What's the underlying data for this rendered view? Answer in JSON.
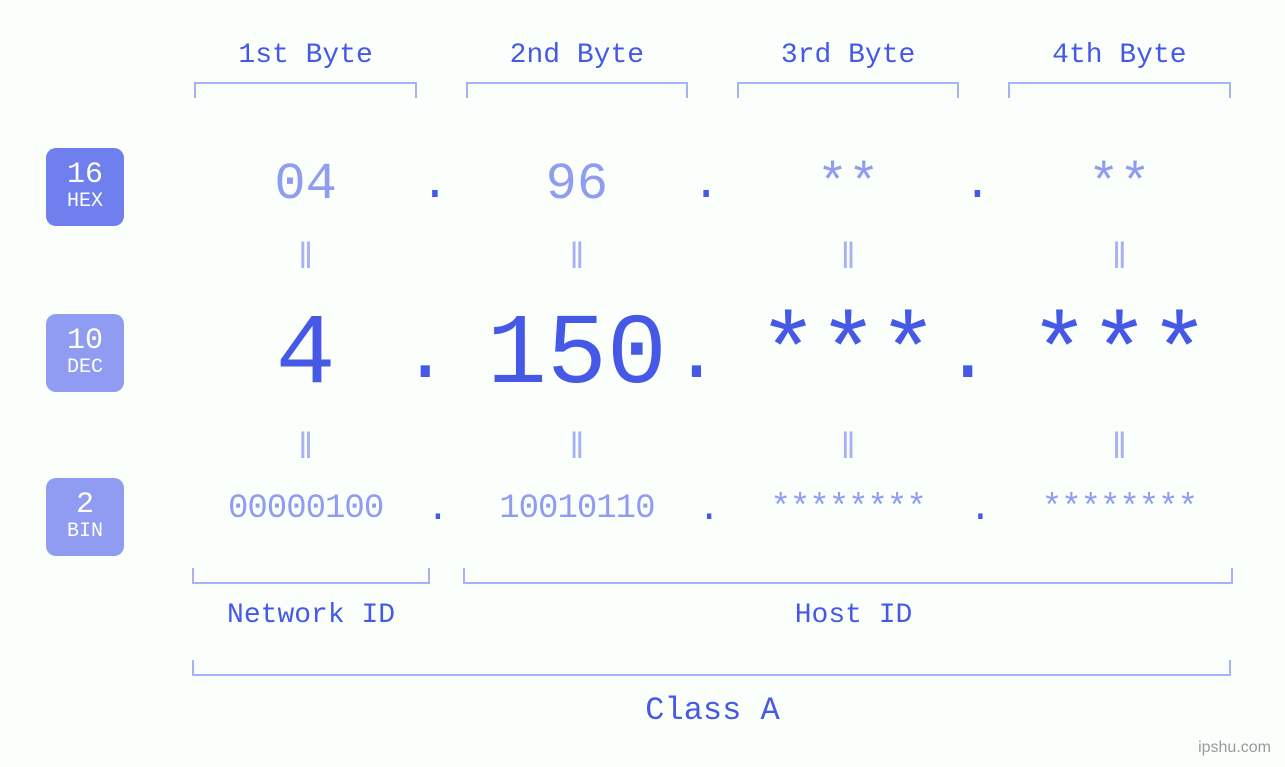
{
  "type": "infographic",
  "description": "IPv4 address byte breakdown in hex/dec/bin",
  "background_color": "#fafffc",
  "colors": {
    "primary_text": "#4659e6",
    "secondary_text": "#8f9cf1",
    "bracket": "#a6b2f3",
    "badge_hex_bg": "#6f7fee",
    "badge_dec_bg": "#8f9cf1",
    "badge_bin_bg": "#8f9cf1",
    "badge_fg": "#ffffff"
  },
  "typography": {
    "font_family": "Courier New, monospace",
    "header_fontsize": 28,
    "hex_fontsize": 52,
    "dec_fontsize": 100,
    "bin_fontsize": 34,
    "equals_fontsize": 36,
    "label_fontsize": 28,
    "class_fontsize": 32,
    "badge_num_fontsize": 30,
    "badge_label_fontsize": 20
  },
  "byte_headers": [
    "1st Byte",
    "2nd Byte",
    "3rd Byte",
    "4th Byte"
  ],
  "badges": {
    "hex": {
      "num": "16",
      "label": "HEX"
    },
    "dec": {
      "num": "10",
      "label": "DEC"
    },
    "bin": {
      "num": "2",
      "label": "BIN"
    }
  },
  "rows": {
    "hex": [
      "04",
      "96",
      "**",
      "**"
    ],
    "dec": [
      "4",
      "150",
      "***",
      "***"
    ],
    "bin": [
      "00000100",
      "10010110",
      "********",
      "********"
    ]
  },
  "separator": ".",
  "equals": "ǁ",
  "id_labels": {
    "network": "Network ID",
    "host": "Host ID"
  },
  "id_split": {
    "network_bytes": 1,
    "host_bytes": 3
  },
  "class_label": "Class A",
  "watermark": "ipshu.com"
}
